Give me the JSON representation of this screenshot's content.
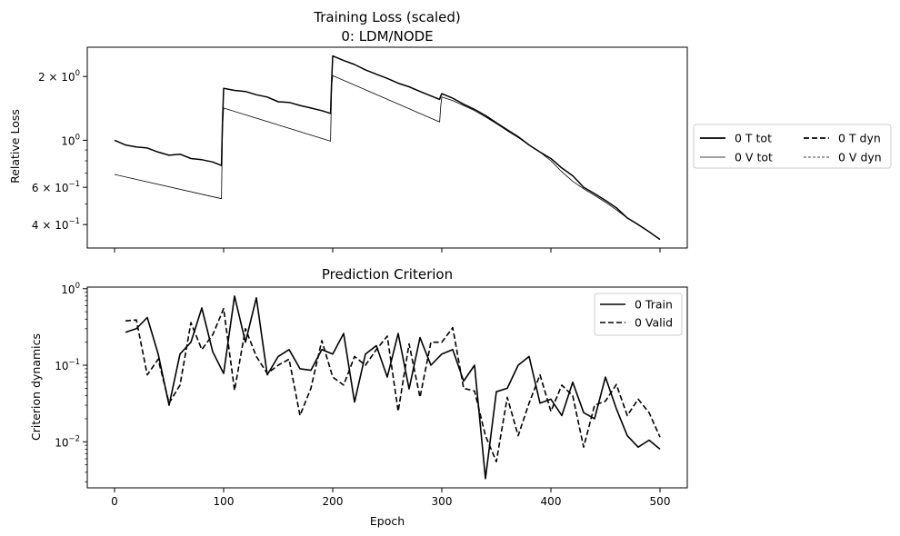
{
  "chart_data": [
    {
      "type": "line",
      "title": "Training Loss (scaled)",
      "subtitle": "0: LDM/NODE",
      "ylabel": "Relative Loss",
      "xlabel": "",
      "yscale": "log",
      "xlim": [
        -25,
        525
      ],
      "ylim": [
        0.31,
        2.75
      ],
      "xticks": [
        0,
        100,
        200,
        300,
        400,
        500
      ],
      "show_xtick_labels": false,
      "yticks": [
        {
          "value": 2.0,
          "base": "2 × 10",
          "exp": "0"
        },
        {
          "value": 1.0,
          "base": "10",
          "exp": "0"
        },
        {
          "value": 0.6,
          "base": "6 × 10",
          "exp": "−1"
        },
        {
          "value": 0.4,
          "base": "4 × 10",
          "exp": "−1"
        }
      ],
      "minor_yticks": [
        0.5,
        0.7,
        0.8,
        0.9,
        3.0,
        0.3
      ],
      "legend": {
        "placement": "outside-right",
        "columns": 2
      },
      "grid": false,
      "series": [
        {
          "name": "0 T tot",
          "style": "solid-thick",
          "x": [
            0,
            10,
            20,
            30,
            40,
            50,
            60,
            70,
            80,
            90,
            98,
            99,
            100,
            110,
            120,
            130,
            140,
            150,
            160,
            170,
            180,
            190,
            198,
            199,
            200,
            210,
            220,
            230,
            240,
            250,
            260,
            270,
            280,
            290,
            298,
            299,
            300,
            310,
            320,
            330,
            340,
            350,
            360,
            370,
            380,
            390,
            400,
            410,
            420,
            430,
            440,
            450,
            460,
            470,
            480,
            490,
            500
          ],
          "y": [
            1.0,
            0.95,
            0.93,
            0.92,
            0.88,
            0.85,
            0.86,
            0.82,
            0.81,
            0.79,
            0.76,
            1.25,
            1.76,
            1.72,
            1.7,
            1.64,
            1.6,
            1.52,
            1.51,
            1.46,
            1.42,
            1.38,
            1.34,
            1.9,
            2.5,
            2.38,
            2.28,
            2.15,
            2.05,
            1.96,
            1.86,
            1.79,
            1.7,
            1.62,
            1.56,
            1.62,
            1.66,
            1.58,
            1.48,
            1.4,
            1.31,
            1.21,
            1.12,
            1.04,
            0.95,
            0.88,
            0.82,
            0.74,
            0.68,
            0.6,
            0.56,
            0.52,
            0.48,
            0.43,
            0.4,
            0.37,
            0.34
          ]
        },
        {
          "name": "0 V tot",
          "style": "solid-thin",
          "x": [
            0,
            98,
            99,
            100,
            198,
            199,
            200,
            298,
            299,
            300,
            310,
            320,
            330,
            340,
            350,
            360,
            370,
            380,
            390,
            400,
            410,
            420,
            430,
            440,
            450,
            460,
            470,
            480,
            490,
            500
          ],
          "y": [
            0.69,
            0.53,
            1.15,
            1.42,
            0.99,
            1.8,
            2.02,
            1.22,
            1.45,
            1.6,
            1.54,
            1.46,
            1.38,
            1.29,
            1.2,
            1.11,
            1.03,
            0.95,
            0.88,
            0.8,
            0.71,
            0.64,
            0.59,
            0.55,
            0.51,
            0.47,
            0.43,
            0.4,
            0.37,
            0.34
          ]
        },
        {
          "name": "0 T dyn",
          "style": "dashed-thick",
          "x": [],
          "y": []
        },
        {
          "name": "0 V dyn",
          "style": "dashed-thin",
          "x": [],
          "y": []
        }
      ]
    },
    {
      "type": "line",
      "title": "Prediction Criterion",
      "xlabel": "Epoch",
      "ylabel": "Criterion dynamics",
      "yscale": "log",
      "xlim": [
        -25,
        525
      ],
      "ylim": [
        0.0025,
        1.05
      ],
      "xticks": [
        0,
        100,
        200,
        300,
        400,
        500
      ],
      "yticks": [
        {
          "value": 1.0,
          "base": "10",
          "exp": "0"
        },
        {
          "value": 0.1,
          "base": "10",
          "exp": "−1"
        },
        {
          "value": 0.01,
          "base": "10",
          "exp": "−2"
        }
      ],
      "minor_yticks": [
        0.003,
        0.004,
        0.005,
        0.006,
        0.007,
        0.008,
        0.009,
        0.02,
        0.03,
        0.04,
        0.05,
        0.06,
        0.07,
        0.08,
        0.09,
        0.2,
        0.3,
        0.4,
        0.5,
        0.6,
        0.7,
        0.8,
        0.9
      ],
      "legend": {
        "placement": "upper-right"
      },
      "grid": false,
      "x": [
        10,
        20,
        30,
        40,
        50,
        60,
        70,
        80,
        90,
        100,
        110,
        120,
        130,
        140,
        150,
        160,
        170,
        180,
        190,
        200,
        210,
        220,
        230,
        240,
        250,
        260,
        270,
        280,
        290,
        300,
        310,
        320,
        330,
        340,
        350,
        360,
        370,
        380,
        390,
        400,
        410,
        420,
        430,
        440,
        450,
        460,
        470,
        480,
        490,
        500
      ],
      "series": [
        {
          "name": "0 Train",
          "style": "solid",
          "values": [
            0.27,
            0.3,
            0.42,
            0.14,
            0.03,
            0.14,
            0.2,
            0.56,
            0.15,
            0.078,
            0.8,
            0.2,
            0.76,
            0.075,
            0.13,
            0.16,
            0.09,
            0.086,
            0.16,
            0.14,
            0.26,
            0.033,
            0.14,
            0.18,
            0.07,
            0.26,
            0.049,
            0.23,
            0.1,
            0.14,
            0.16,
            0.062,
            0.1,
            0.0033,
            0.045,
            0.05,
            0.1,
            0.13,
            0.032,
            0.036,
            0.022,
            0.06,
            0.024,
            0.02,
            0.07,
            0.027,
            0.012,
            0.0085,
            0.0105,
            0.008
          ]
        },
        {
          "name": "0 Valid",
          "style": "dashed",
          "values": [
            0.38,
            0.39,
            0.075,
            0.12,
            0.032,
            0.055,
            0.36,
            0.16,
            0.25,
            0.55,
            0.047,
            0.3,
            0.13,
            0.078,
            0.1,
            0.12,
            0.022,
            0.05,
            0.21,
            0.07,
            0.055,
            0.13,
            0.1,
            0.16,
            0.24,
            0.025,
            0.19,
            0.038,
            0.2,
            0.2,
            0.31,
            0.05,
            0.046,
            0.012,
            0.0055,
            0.038,
            0.012,
            0.032,
            0.075,
            0.025,
            0.055,
            0.04,
            0.0085,
            0.03,
            0.034,
            0.056,
            0.022,
            0.036,
            0.024,
            0.0115
          ]
        }
      ]
    }
  ]
}
